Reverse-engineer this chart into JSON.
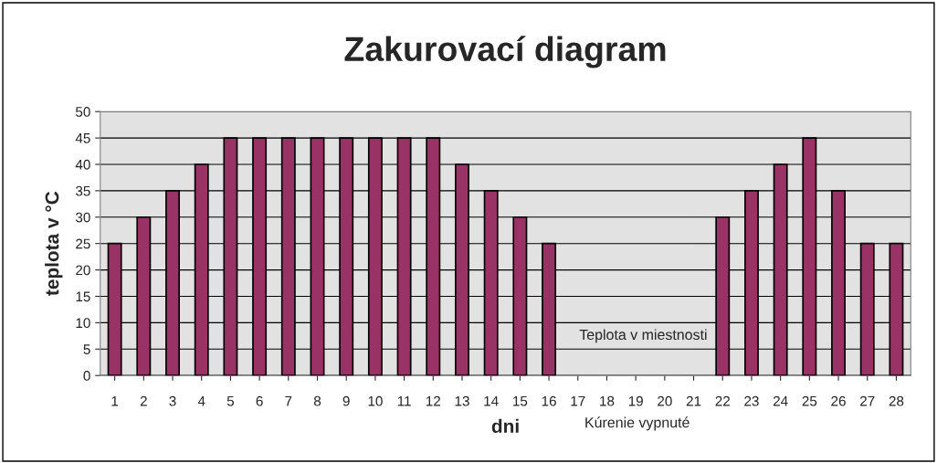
{
  "chart_data": {
    "type": "bar",
    "title": "Zakurovací diagram",
    "xlabel": "dni",
    "ylabel": "teplota v °C",
    "categories": [
      "1",
      "2",
      "3",
      "4",
      "5",
      "6",
      "7",
      "8",
      "9",
      "10",
      "11",
      "12",
      "13",
      "14",
      "15",
      "16",
      "17",
      "18",
      "19",
      "20",
      "21",
      "22",
      "23",
      "24",
      "25",
      "26",
      "27",
      "28"
    ],
    "values": [
      25,
      30,
      35,
      40,
      45,
      45,
      45,
      45,
      45,
      45,
      45,
      45,
      40,
      35,
      30,
      25,
      null,
      null,
      null,
      null,
      null,
      30,
      35,
      40,
      45,
      35,
      25,
      25
    ],
    "color": "#993366",
    "ylim": [
      0,
      50
    ],
    "yticks": [
      0,
      5,
      10,
      15,
      20,
      25,
      30,
      35,
      40,
      45,
      50
    ],
    "grid": "y",
    "annotations": [
      "Teplota v miestnosti",
      "Kúrenie vypnuté"
    ]
  }
}
